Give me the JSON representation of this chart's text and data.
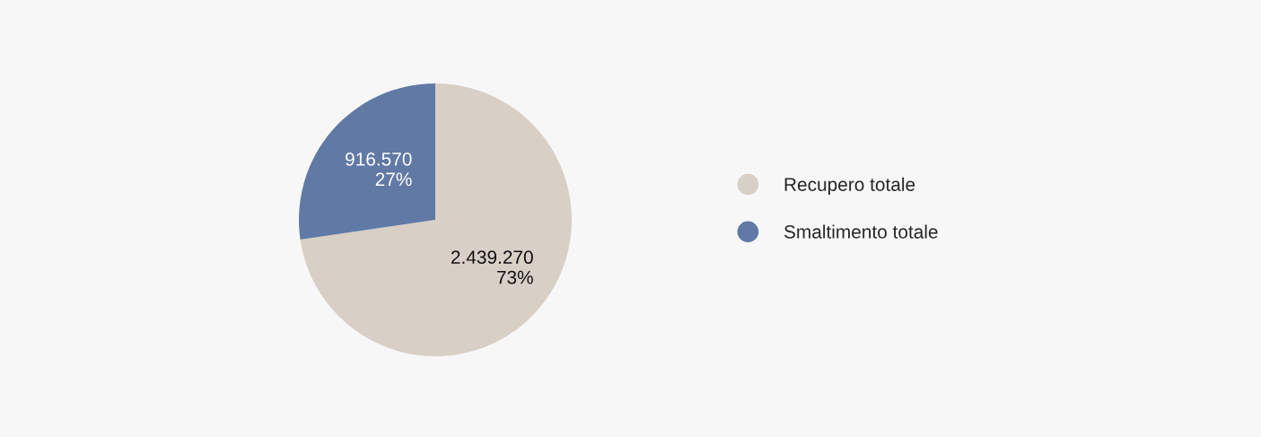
{
  "chart_data": {
    "type": "pie",
    "categories": [
      "Recupero totale",
      "Smaltimento totale"
    ],
    "values": [
      2439270,
      916570
    ],
    "colors": [
      "#d8cfc6",
      "#617aa5"
    ],
    "value_labels": [
      "2.439.270\n73%",
      "916.570\n27%"
    ],
    "legend": "right"
  }
}
